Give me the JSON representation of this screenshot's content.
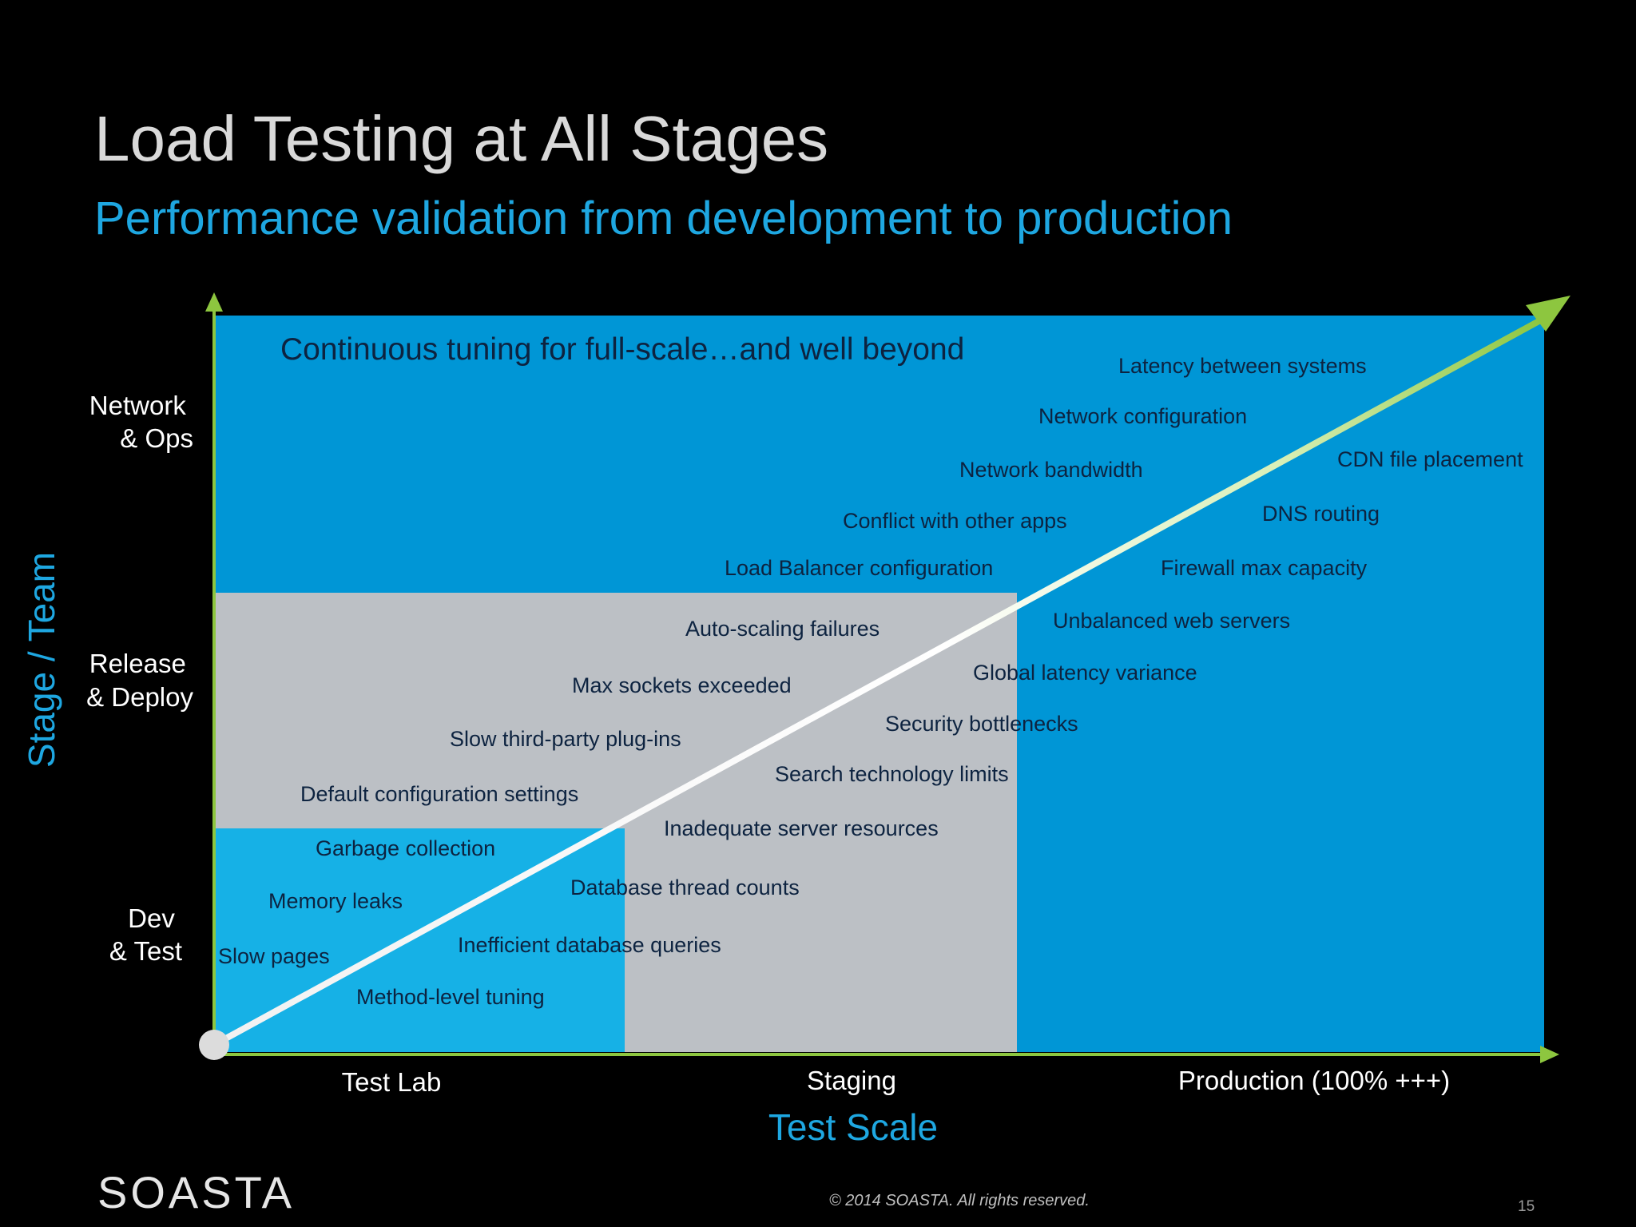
{
  "slide": {
    "title": "Load Testing at All Stages",
    "subtitle": "Performance validation from development to production",
    "headline": "Continuous tuning for full-scale…and well beyond",
    "logo": "SOASTA",
    "copyright": "© 2014  SOASTA. All rights reserved.",
    "page_number": "15"
  },
  "axes": {
    "y_title": "Stage / Team",
    "x_title": "Test Scale",
    "y_levels": [
      [
        "Network",
        "& Ops"
      ],
      [
        "Release",
        "& Deploy"
      ],
      [
        "Dev",
        "& Test"
      ]
    ],
    "x_levels": [
      "Test Lab",
      "Staging",
      "Production (100% +++)"
    ]
  },
  "colors": {
    "background": "#000000",
    "production_zone": "#0096d6",
    "staging_zone": "#bcc0c5",
    "testlab_zone": "#16b1e6",
    "accent": "#1ea7e1",
    "arrow_green": "#8dc63f"
  },
  "zones": {
    "test_lab": {
      "items": [
        "Garbage collection",
        "Memory leaks",
        "Slow pages",
        "Method-level tuning"
      ]
    },
    "staging": {
      "items": [
        "Auto-scaling failures",
        "Max sockets exceeded",
        "Slow third-party plug-ins",
        "Default configuration settings",
        "Search technology limits",
        "Inadequate server resources",
        "Database thread counts",
        "Inefficient database queries"
      ]
    },
    "production": {
      "items": [
        "Latency between systems",
        "Network configuration",
        "Network bandwidth",
        "CDN file placement",
        "Conflict with other apps",
        "DNS routing",
        "Load Balancer configuration",
        "Firewall max capacity",
        "Unbalanced web servers",
        "Global latency variance",
        "Security bottlenecks"
      ]
    }
  }
}
